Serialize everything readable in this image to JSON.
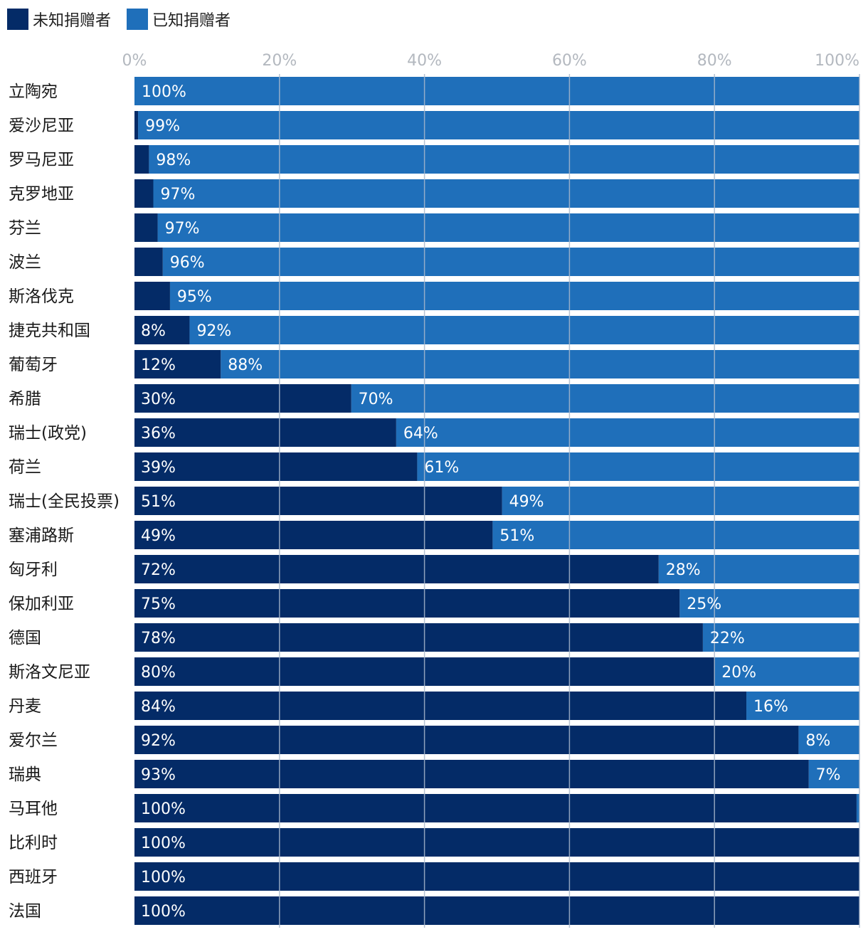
{
  "colors": {
    "unknown": "#042B67",
    "known": "#1F6FBA",
    "grid": "#A9B8CC",
    "tick_text": "#B3B8BF",
    "label_text": "#1A1A1A",
    "bar_text": "#FFFFFF"
  },
  "legend": [
    {
      "label": "未知捐赠者",
      "color": "#042B67"
    },
    {
      "label": "已知捐赠者",
      "color": "#1F6FBA"
    }
  ],
  "chart_data": {
    "type": "bar",
    "orientation": "horizontal",
    "stacked": true,
    "title": "",
    "xlabel": "",
    "ylabel": "",
    "xlim": [
      0,
      100
    ],
    "x_ticks": [
      "0%",
      "20%",
      "40%",
      "60%",
      "80%",
      "100%"
    ],
    "tick_values": [
      0,
      20,
      40,
      60,
      80,
      100
    ],
    "grid": true,
    "legend_position": "top-left",
    "categories": [
      "立陶宛",
      "爱沙尼亚",
      "罗马尼亚",
      "克罗地亚",
      "芬兰",
      "波兰",
      "斯洛伐克",
      "捷克共和国",
      "葡萄牙",
      "希腊",
      "瑞士(政党)",
      "荷兰",
      "瑞士(全民投票)",
      "塞浦路斯",
      "匈牙利",
      "保加利亚",
      "德国",
      "斯洛文尼亚",
      "丹麦",
      "爱尔兰",
      "瑞典",
      "马耳他",
      "比利时",
      "西班牙",
      "法国"
    ],
    "series": [
      {
        "name": "未知捐赠者",
        "values": [
          0,
          0.5,
          2,
          2.6,
          3.2,
          3.9,
          4.9,
          7.6,
          11.9,
          29.9,
          36.1,
          39.0,
          50.7,
          49.4,
          72.3,
          75.2,
          78.4,
          80.0,
          84.4,
          91.6,
          93.0,
          99.6,
          100,
          100,
          100
        ],
        "labels": [
          "",
          "",
          "",
          "",
          "",
          "",
          "",
          "8%",
          "12%",
          "30%",
          "36%",
          "39%",
          "51%",
          "49%",
          "72%",
          "75%",
          "78%",
          "80%",
          "84%",
          "92%",
          "93%",
          "100%",
          "100%",
          "100%",
          "100%"
        ]
      },
      {
        "name": "已知捐赠者",
        "values": [
          100,
          99.5,
          98,
          97.4,
          96.8,
          96.1,
          95.1,
          92.4,
          88.1,
          70.1,
          63.9,
          61.0,
          49.3,
          50.6,
          27.7,
          24.8,
          21.6,
          20.0,
          15.6,
          8.4,
          7.0,
          0.4,
          0,
          0,
          0
        ],
        "labels": [
          "100%",
          "99%",
          "98%",
          "97%",
          "97%",
          "96%",
          "95%",
          "92%",
          "88%",
          "70%",
          "64%",
          "61%",
          "49%",
          "51%",
          "28%",
          "25%",
          "22%",
          "20%",
          "16%",
          "8%",
          "7%",
          "",
          "",
          "",
          ""
        ]
      }
    ]
  }
}
